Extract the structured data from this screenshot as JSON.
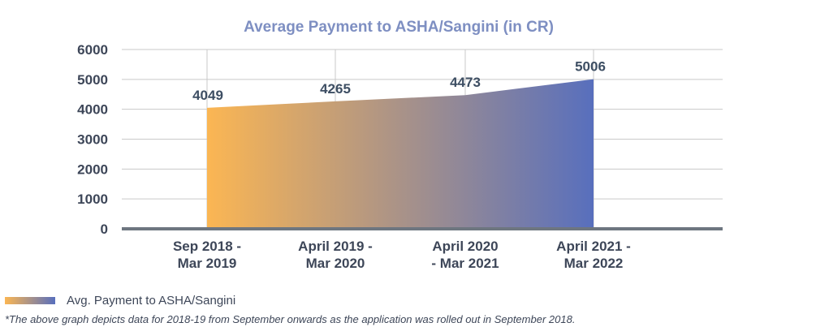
{
  "chart_data": {
    "type": "area",
    "title": "Average Payment to ASHA/Sangini (in CR)",
    "categories": [
      [
        "Sep 2018 -",
        "Mar 2019"
      ],
      [
        "April 2019 -",
        "Mar 2020"
      ],
      [
        "April 2020",
        "- Mar 2021"
      ],
      [
        "April 2021 -",
        "Mar 2022"
      ]
    ],
    "series": [
      {
        "name": "Avg. Payment to ASHA/Sangini",
        "values": [
          4049,
          4265,
          4473,
          5006
        ]
      }
    ],
    "ylim": [
      0,
      6000
    ],
    "yticks": [
      0,
      1000,
      2000,
      3000,
      4000,
      5000,
      6000
    ],
    "xlabel": "",
    "ylabel": "",
    "grid": true,
    "legend": "bottom-left",
    "gradient_colors": [
      "#fbb653",
      "#586fbd"
    ]
  },
  "footnote": "*The above graph depicts data for 2018-19 from September onwards as the application was rolled out in September 2018."
}
